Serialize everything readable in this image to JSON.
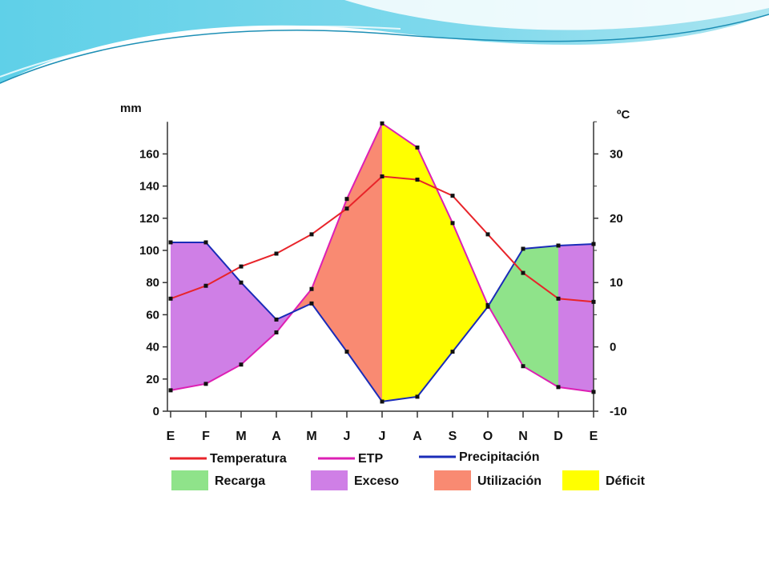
{
  "slide": {
    "background": "#ffffff",
    "banner_colors": [
      "#5fd0e8",
      "#a9e4f0",
      "#1d8fb5"
    ]
  },
  "chart_data": {
    "type": "line",
    "categories": [
      "E",
      "F",
      "M",
      "A",
      "M",
      "J",
      "J",
      "A",
      "S",
      "O",
      "N",
      "D",
      "E"
    ],
    "y_left": {
      "label": "mm",
      "ticks": [
        0,
        20,
        40,
        60,
        80,
        100,
        120,
        140,
        160
      ],
      "lim": [
        0,
        180
      ]
    },
    "y_right": {
      "label": "ºC",
      "ticks": [
        -10,
        0,
        10,
        20,
        30
      ],
      "lim": [
        -10,
        35
      ]
    },
    "series": [
      {
        "name": "Temperatura",
        "axis": "right",
        "color": "#e8242a",
        "values": [
          7.5,
          9.5,
          12.5,
          14.5,
          17.5,
          21.5,
          26.5,
          26,
          23.5,
          17.5,
          11.5,
          7.5,
          7
        ]
      },
      {
        "name": "ETP",
        "axis": "left",
        "color": "#dd1fb4",
        "values": [
          13,
          17,
          29,
          49,
          76,
          132,
          179,
          164,
          117,
          66,
          28,
          15,
          12
        ]
      },
      {
        "name": "Precipitación",
        "axis": "left",
        "color": "#1a2cb8",
        "values": [
          105,
          105,
          80,
          57,
          67,
          37,
          6,
          9,
          37,
          65,
          101,
          103,
          104
        ]
      }
    ],
    "areas": [
      {
        "name": "Recarga",
        "color": "#8fe38a"
      },
      {
        "name": "Exceso",
        "color": "#cf7fe6"
      },
      {
        "name": "Utilización",
        "color": "#f98a72"
      },
      {
        "name": "Déficit",
        "color": "#ffff00"
      }
    ]
  }
}
